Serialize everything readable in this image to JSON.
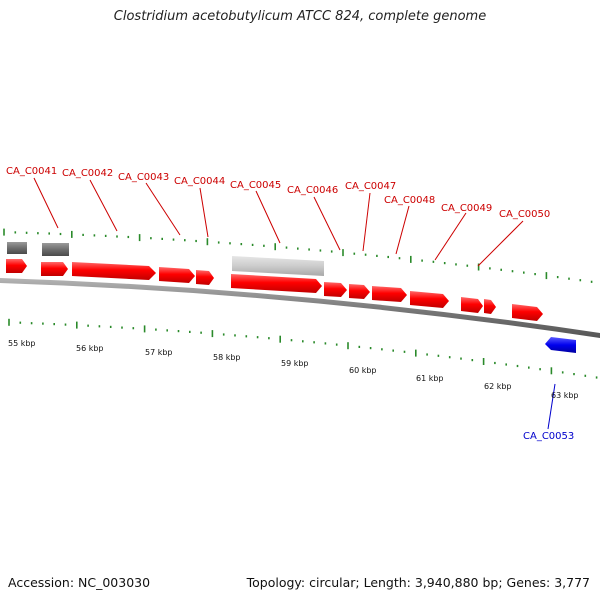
{
  "title": "Clostridium acetobutylicum ATCC 824, complete genome",
  "footer": {
    "accession": "Accession: NC_003030",
    "summary": "Topology: circular; Length: 3,940,880 bp; Genes: 3,777"
  },
  "colors": {
    "forward_gene": "#ff0000",
    "reverse_gene": "#0000ee",
    "other_feature": "#7a7a7a",
    "backbone": "#888888",
    "ticks": "#2a8a2a",
    "forward_label": "#cc0000",
    "reverse_label": "#0000cc"
  },
  "scale_labels": [
    "55 kbp",
    "56 kbp",
    "57 kbp",
    "58 kbp",
    "59 kbp",
    "60 kbp",
    "61 kbp",
    "62 kbp",
    "63 kbp"
  ],
  "forward_labels": [
    "CA_C0041",
    "CA_C0042",
    "CA_C0043",
    "CA_C0044",
    "CA_C0045",
    "CA_C0046",
    "CA_C0047",
    "CA_C0048",
    "CA_C0049",
    "CA_C0050"
  ],
  "reverse_labels": [
    "CA_C0053"
  ]
}
